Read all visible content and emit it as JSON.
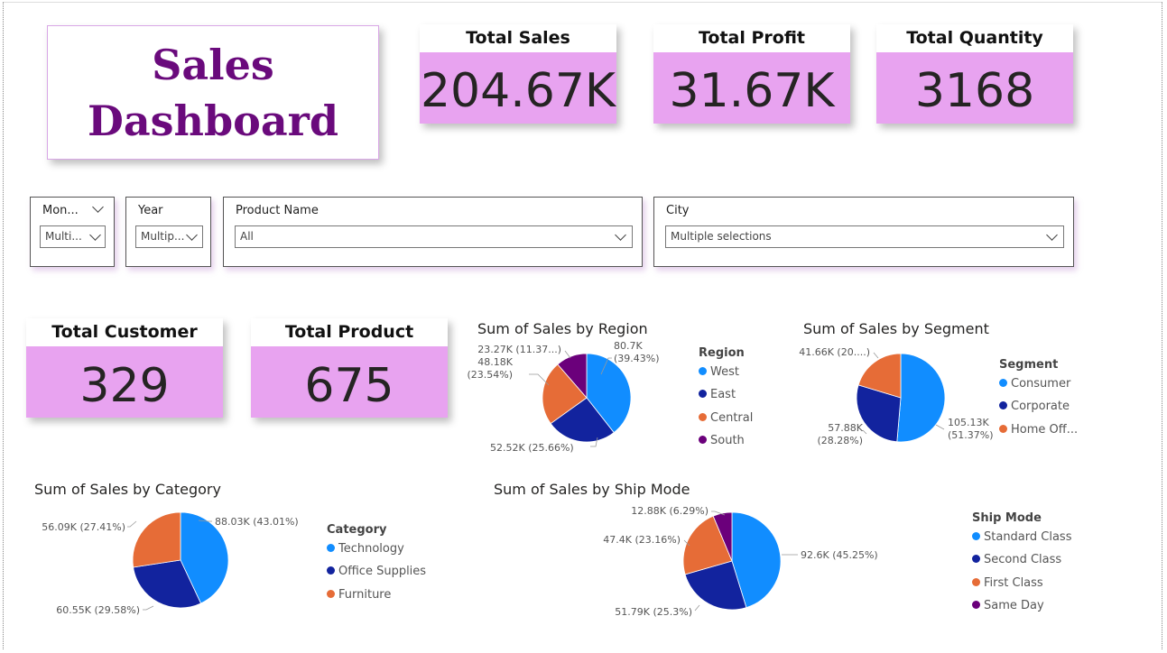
{
  "title": "Sales\nDashboard",
  "title_lines": [
    "Sales",
    "Dashboard"
  ],
  "kpis": {
    "total_sales": {
      "label": "Total Sales",
      "value": "204.67K"
    },
    "total_profit": {
      "label": "Total Profit",
      "value": "31.67K"
    },
    "total_quantity": {
      "label": "Total Quantity",
      "value": "3168"
    },
    "total_customer": {
      "label": "Total Customer",
      "value": "329"
    },
    "total_product": {
      "label": "Total Product",
      "value": "675"
    }
  },
  "slicers": {
    "month": {
      "label": "Mon...",
      "value": "Multi..."
    },
    "year": {
      "label": "Year",
      "value": "Multip..."
    },
    "product": {
      "label": "Product Name",
      "value": "All"
    },
    "city": {
      "label": "City",
      "value": "Multiple selections"
    }
  },
  "colors": {
    "c1": "#118dff",
    "c2": "#12239e",
    "c3": "#e66c37",
    "c4": "#6b007b",
    "kpi_bg": "#e8a3f0",
    "title": "#6a0a7c"
  },
  "chart_data": [
    {
      "type": "pie",
      "title": "Sum of Sales by Region",
      "legend_title": "Region",
      "categories": [
        "West",
        "East",
        "Central",
        "South"
      ],
      "values": [
        80.7,
        52.52,
        48.18,
        23.27
      ],
      "labels": [
        "80.7K\n(39.43%)",
        "52.52K (25.66%)",
        "48.18K\n(23.54%)",
        "23.27K (11.37...)"
      ],
      "legend_position": "right"
    },
    {
      "type": "pie",
      "title": "Sum of Sales by Segment",
      "legend_title": "Segment",
      "categories": [
        "Consumer",
        "Corporate",
        "Home Off..."
      ],
      "values": [
        105.13,
        57.88,
        41.66
      ],
      "labels": [
        "105.13K\n(51.37%)",
        "57.88K\n(28.28%)",
        "41.66K (20....)"
      ],
      "legend_position": "right"
    },
    {
      "type": "pie",
      "title": "Sum of Sales by Category",
      "legend_title": "Category",
      "categories": [
        "Technology",
        "Office Supplies",
        "Furniture"
      ],
      "values": [
        88.03,
        60.55,
        56.09
      ],
      "labels": [
        "88.03K (43.01%)",
        "60.55K (29.58%)",
        "56.09K (27.41%)"
      ],
      "legend_position": "right"
    },
    {
      "type": "pie",
      "title": "Sum of Sales by Ship Mode",
      "legend_title": "Ship Mode",
      "categories": [
        "Standard Class",
        "Second Class",
        "First Class",
        "Same Day"
      ],
      "values": [
        92.6,
        51.79,
        47.4,
        12.88
      ],
      "labels": [
        "92.6K (45.25%)",
        "51.79K (25.3%)",
        "47.4K (23.16%)",
        "12.88K (6.29%)"
      ],
      "legend_position": "right"
    }
  ]
}
